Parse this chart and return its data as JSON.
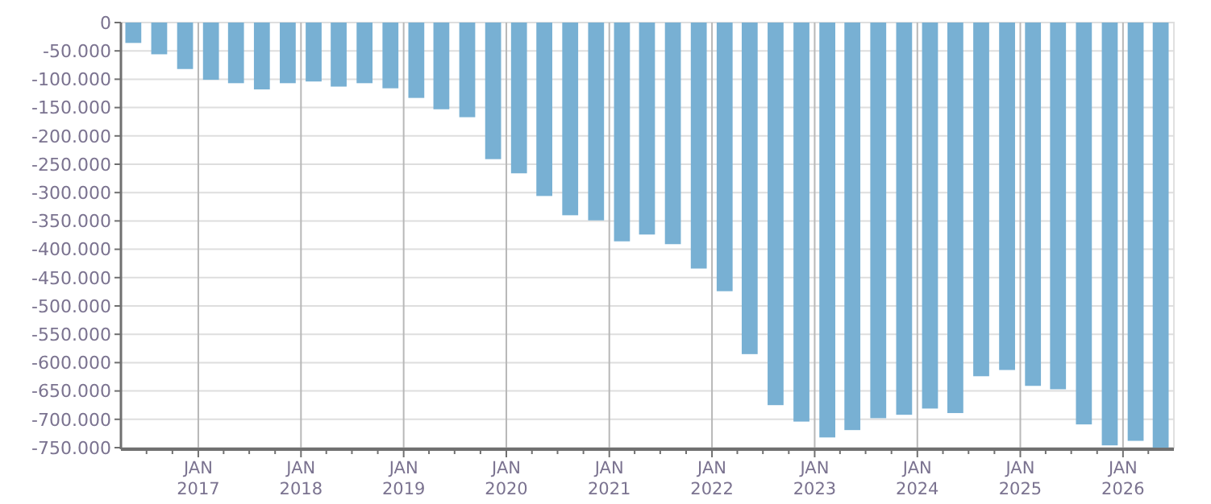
{
  "chart_data": {
    "type": "bar",
    "color": "#78b0d3",
    "x": [
      "2016-05-15",
      "2016-08-15",
      "2016-11-15",
      "2017-02-15",
      "2017-05-15",
      "2017-08-15",
      "2017-11-15",
      "2018-02-15",
      "2018-05-15",
      "2018-08-15",
      "2018-11-15",
      "2019-02-15",
      "2019-05-15",
      "2019-08-15",
      "2019-11-15",
      "2020-02-15",
      "2020-05-15",
      "2020-08-15",
      "2020-11-15",
      "2021-02-15",
      "2021-05-15",
      "2021-08-15",
      "2021-11-15",
      "2022-02-15",
      "2022-05-15",
      "2022-08-15",
      "2022-11-15",
      "2023-02-15",
      "2023-05-15",
      "2023-08-15",
      "2023-11-15",
      "2024-02-15",
      "2024-05-15",
      "2024-08-15",
      "2024-11-15",
      "2025-02-15",
      "2025-05-15",
      "2025-08-15",
      "2025-11-15",
      "2026-02-15",
      "2026-05-15"
    ],
    "values": [
      -36000,
      -56000,
      -82000,
      -101000,
      -107000,
      -118000,
      -107000,
      -104000,
      -113000,
      -107000,
      -116000,
      -133000,
      -153000,
      -167000,
      -241000,
      -266000,
      -306000,
      -340000,
      -349000,
      -386000,
      -374000,
      -391000,
      -434000,
      -474000,
      -585000,
      -675000,
      -704000,
      -732000,
      -719000,
      -698000,
      -692000,
      -681000,
      -689000,
      -624000,
      -613000,
      -641000,
      -647000,
      -709000,
      -746000,
      -738000,
      -750000
    ],
    "xlim": [
      "2016-04-01",
      "2026-07-01"
    ],
    "xticks": [
      {
        "value": "2016-07-01",
        "label": null
      },
      {
        "value": "2016-10-01",
        "label": null
      },
      {
        "value": "2017-01-01",
        "label": "JAN 2017"
      },
      {
        "value": "2017-04-01",
        "label": null
      },
      {
        "value": "2017-07-01",
        "label": null
      },
      {
        "value": "2017-10-01",
        "label": null
      },
      {
        "value": "2018-01-01",
        "label": "JAN 2018"
      },
      {
        "value": "2018-04-01",
        "label": null
      },
      {
        "value": "2018-07-01",
        "label": null
      },
      {
        "value": "2018-10-01",
        "label": null
      },
      {
        "value": "2019-01-01",
        "label": "JAN 2019"
      },
      {
        "value": "2019-04-01",
        "label": null
      },
      {
        "value": "2019-07-01",
        "label": null
      },
      {
        "value": "2019-10-01",
        "label": null
      },
      {
        "value": "2020-01-01",
        "label": "JAN 2020"
      },
      {
        "value": "2020-04-01",
        "label": null
      },
      {
        "value": "2020-07-01",
        "label": null
      },
      {
        "value": "2020-10-01",
        "label": null
      },
      {
        "value": "2021-01-01",
        "label": "JAN 2021"
      },
      {
        "value": "2021-04-01",
        "label": null
      },
      {
        "value": "2021-07-01",
        "label": null
      },
      {
        "value": "2021-10-01",
        "label": null
      },
      {
        "value": "2022-01-01",
        "label": "JAN 2022"
      },
      {
        "value": "2022-04-01",
        "label": null
      },
      {
        "value": "2022-07-01",
        "label": null
      },
      {
        "value": "2022-10-01",
        "label": null
      },
      {
        "value": "2023-01-01",
        "label": "JAN 2023"
      },
      {
        "value": "2023-04-01",
        "label": null
      },
      {
        "value": "2023-07-01",
        "label": null
      },
      {
        "value": "2023-10-01",
        "label": null
      },
      {
        "value": "2024-01-01",
        "label": "JAN 2024"
      },
      {
        "value": "2024-04-01",
        "label": null
      },
      {
        "value": "2024-07-01",
        "label": null
      },
      {
        "value": "2024-10-01",
        "label": null
      },
      {
        "value": "2025-01-01",
        "label": "JAN 2025"
      },
      {
        "value": "2025-04-01",
        "label": null
      },
      {
        "value": "2025-07-01",
        "label": null
      },
      {
        "value": "2025-10-01",
        "label": null
      },
      {
        "value": "2026-01-01",
        "label": "JAN 2026"
      },
      {
        "value": "2026-04-01",
        "label": null
      }
    ],
    "ylim": [
      -750000,
      0
    ],
    "yticks": [
      {
        "value": 0,
        "label": "0"
      },
      {
        "value": -50000,
        "label": "-50.000"
      },
      {
        "value": -100000,
        "label": "-100.000"
      },
      {
        "value": -150000,
        "label": "-150.000"
      },
      {
        "value": -200000,
        "label": "-200.000"
      },
      {
        "value": -250000,
        "label": "-250.000"
      },
      {
        "value": -300000,
        "label": "-300.000"
      },
      {
        "value": -350000,
        "label": "-350.000"
      },
      {
        "value": -400000,
        "label": "-400.000"
      },
      {
        "value": -450000,
        "label": "-450.000"
      },
      {
        "value": -500000,
        "label": "-500.000"
      },
      {
        "value": -550000,
        "label": "-550.000"
      },
      {
        "value": -600000,
        "label": "-600.000"
      },
      {
        "value": -650000,
        "label": "-650.000"
      },
      {
        "value": -700000,
        "label": "-700.000"
      },
      {
        "value": -750000,
        "label": "-750.000"
      }
    ],
    "grid": true
  }
}
